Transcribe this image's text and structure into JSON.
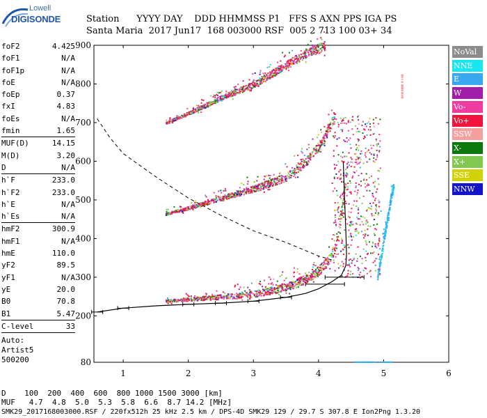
{
  "logo": {
    "line1": "Lowell",
    "line2": "DIGISONDE"
  },
  "header": {
    "labels": "Station      YYYY DAY    DDD HHMMSS P1   FFS S AXN PPS IGA PS",
    "values": "Santa Maria  2017 Jun17  168 003000 RSF  005 2 713 100 03+ 34"
  },
  "parameters": {
    "group1": [
      {
        "name": "foF2",
        "value": "4.425"
      },
      {
        "name": "foF1",
        "value": "N/A"
      },
      {
        "name": "foF1p",
        "value": "N/A"
      },
      {
        "name": "foE",
        "value": "N/A"
      },
      {
        "name": "foEp",
        "value": "0.37"
      },
      {
        "name": "fxI",
        "value": "4.83"
      },
      {
        "name": "foEs",
        "value": "N/A"
      },
      {
        "name": "fmin",
        "value": "1.65"
      }
    ],
    "group2": [
      {
        "name": "MUF(D)",
        "value": "14.15"
      },
      {
        "name": "M(D)",
        "value": "3.20"
      },
      {
        "name": "D",
        "value": "N/A"
      }
    ],
    "group3": [
      {
        "name": "h`F",
        "value": "233.0"
      },
      {
        "name": "h`F2",
        "value": "233.0"
      },
      {
        "name": "h`E",
        "value": "N/A"
      },
      {
        "name": "h`Es",
        "value": "N/A"
      }
    ],
    "group4": [
      {
        "name": "hmF2",
        "value": "300.9"
      },
      {
        "name": "hmF1",
        "value": "N/A"
      },
      {
        "name": "hmE",
        "value": "110.0"
      },
      {
        "name": "yF2",
        "value": "89.5"
      },
      {
        "name": "yF1",
        "value": "N/A"
      },
      {
        "name": "yE",
        "value": "20.0"
      },
      {
        "name": "B0",
        "value": "70.8"
      },
      {
        "name": "B1",
        "value": "5.47"
      }
    ],
    "group5": [
      {
        "name": "C-level",
        "value": "33"
      }
    ],
    "auto_lines": [
      "Auto:",
      "Artist5",
      "500200"
    ]
  },
  "legend": [
    {
      "label": "NoVal",
      "color": "#8c8c8c",
      "text": "#ffffff"
    },
    {
      "label": "NNE",
      "color": "#19e6f0",
      "text": "#ffffff"
    },
    {
      "label": "E",
      "color": "#3aa8f0",
      "text": "#ffffff"
    },
    {
      "label": "W",
      "color": "#a01ea8",
      "text": "#ffffff"
    },
    {
      "label": "Vo-",
      "color": "#f03ca0",
      "text": "#ffffff"
    },
    {
      "label": "Vo+",
      "color": "#f0143c",
      "text": "#ffffff"
    },
    {
      "label": "SSW",
      "color": "#f5a0a0",
      "text": "#ffffff"
    },
    {
      "label": "X-",
      "color": "#0a780a",
      "text": "#ffffff"
    },
    {
      "label": "X+",
      "color": "#82c850",
      "text": "#ffffff"
    },
    {
      "label": "SSE",
      "color": "#d2d20a",
      "text": "#ffffff"
    },
    {
      "label": "NNW",
      "color": "#1414c8",
      "text": "#ffffff"
    }
  ],
  "footer": {
    "line1": "D    100  200  400  600  800 1000 1500 3000 [km]",
    "line2": "MUF   4.7  4.8  5.0  5.3  5.8  6.6  8.7 14.2 [MHz]",
    "line3": "SMK29_2017168003000.RSF / 220fx512h 25 kHz 2.5 km / DPS-4D SMK29 129 / 29.7 S 307.8 E Ion2Png 1.3.20"
  },
  "chart_data": {
    "type": "scatter",
    "title": "",
    "xlabel": "",
    "ylabel": "",
    "xlim": [
      0.55,
      6.0
    ],
    "ylim": [
      80,
      900
    ],
    "x_ticks": [
      1,
      2,
      3,
      4,
      5,
      6
    ],
    "y_ticks": [
      80,
      200,
      300,
      400,
      500,
      600,
      700,
      800,
      900
    ],
    "traces": [
      {
        "name": "F2 first hop",
        "points": [
          [
            1.65,
            240
          ],
          [
            2.0,
            244
          ],
          [
            2.5,
            250
          ],
          [
            3.0,
            258
          ],
          [
            3.3,
            268
          ],
          [
            3.6,
            282
          ],
          [
            3.85,
            300
          ],
          [
            4.0,
            318
          ],
          [
            4.15,
            345
          ],
          [
            4.25,
            380
          ],
          [
            4.3,
            420
          ],
          [
            4.35,
            470
          ],
          [
            4.4,
            540
          ],
          [
            4.45,
            600
          ]
        ]
      },
      {
        "name": "F2 second hop",
        "points": [
          [
            1.65,
            465
          ],
          [
            2.0,
            480
          ],
          [
            2.5,
            505
          ],
          [
            3.0,
            530
          ],
          [
            3.5,
            560
          ],
          [
            3.8,
            600
          ],
          [
            4.05,
            650
          ],
          [
            4.25,
            720
          ]
        ]
      },
      {
        "name": "F2 third hop",
        "points": [
          [
            1.65,
            700
          ],
          [
            2.0,
            725
          ],
          [
            2.5,
            765
          ],
          [
            3.0,
            800
          ],
          [
            3.4,
            840
          ],
          [
            3.8,
            880
          ],
          [
            4.1,
            900
          ]
        ]
      },
      {
        "name": "far range spread",
        "points": [
          [
            4.9,
            300
          ],
          [
            4.95,
            350
          ],
          [
            5.0,
            400
          ],
          [
            5.05,
            450
          ],
          [
            5.1,
            500
          ],
          [
            5.15,
            540
          ]
        ]
      }
    ],
    "profile": [
      [
        0.6,
        210
      ],
      [
        1.0,
        220
      ],
      [
        1.5,
        226
      ],
      [
        2.0,
        230
      ],
      [
        2.5,
        233
      ],
      [
        3.0,
        238
      ],
      [
        3.5,
        248
      ],
      [
        3.8,
        258
      ],
      [
        4.0,
        270
      ],
      [
        4.2,
        288
      ],
      [
        4.35,
        305
      ],
      [
        4.42,
        330
      ],
      [
        4.43,
        360
      ],
      [
        4.42,
        420
      ],
      [
        4.4,
        500
      ],
      [
        4.38,
        600
      ]
    ],
    "profile_error_bars": [
      [
        0.6,
        210
      ],
      [
        1.0,
        220
      ],
      [
        2.0,
        230
      ],
      [
        2.5,
        233
      ],
      [
        3.0,
        238
      ],
      [
        3.5,
        248
      ],
      [
        4.1,
        282
      ],
      [
        4.4,
        300
      ]
    ],
    "muf_curve": [
      [
        0.6,
        710
      ],
      [
        0.8,
        660
      ],
      [
        1.0,
        620
      ],
      [
        1.5,
        560
      ],
      [
        2.0,
        505
      ],
      [
        2.5,
        460
      ],
      [
        3.0,
        420
      ],
      [
        3.5,
        390
      ],
      [
        4.0,
        355
      ],
      [
        4.2,
        345
      ]
    ]
  }
}
